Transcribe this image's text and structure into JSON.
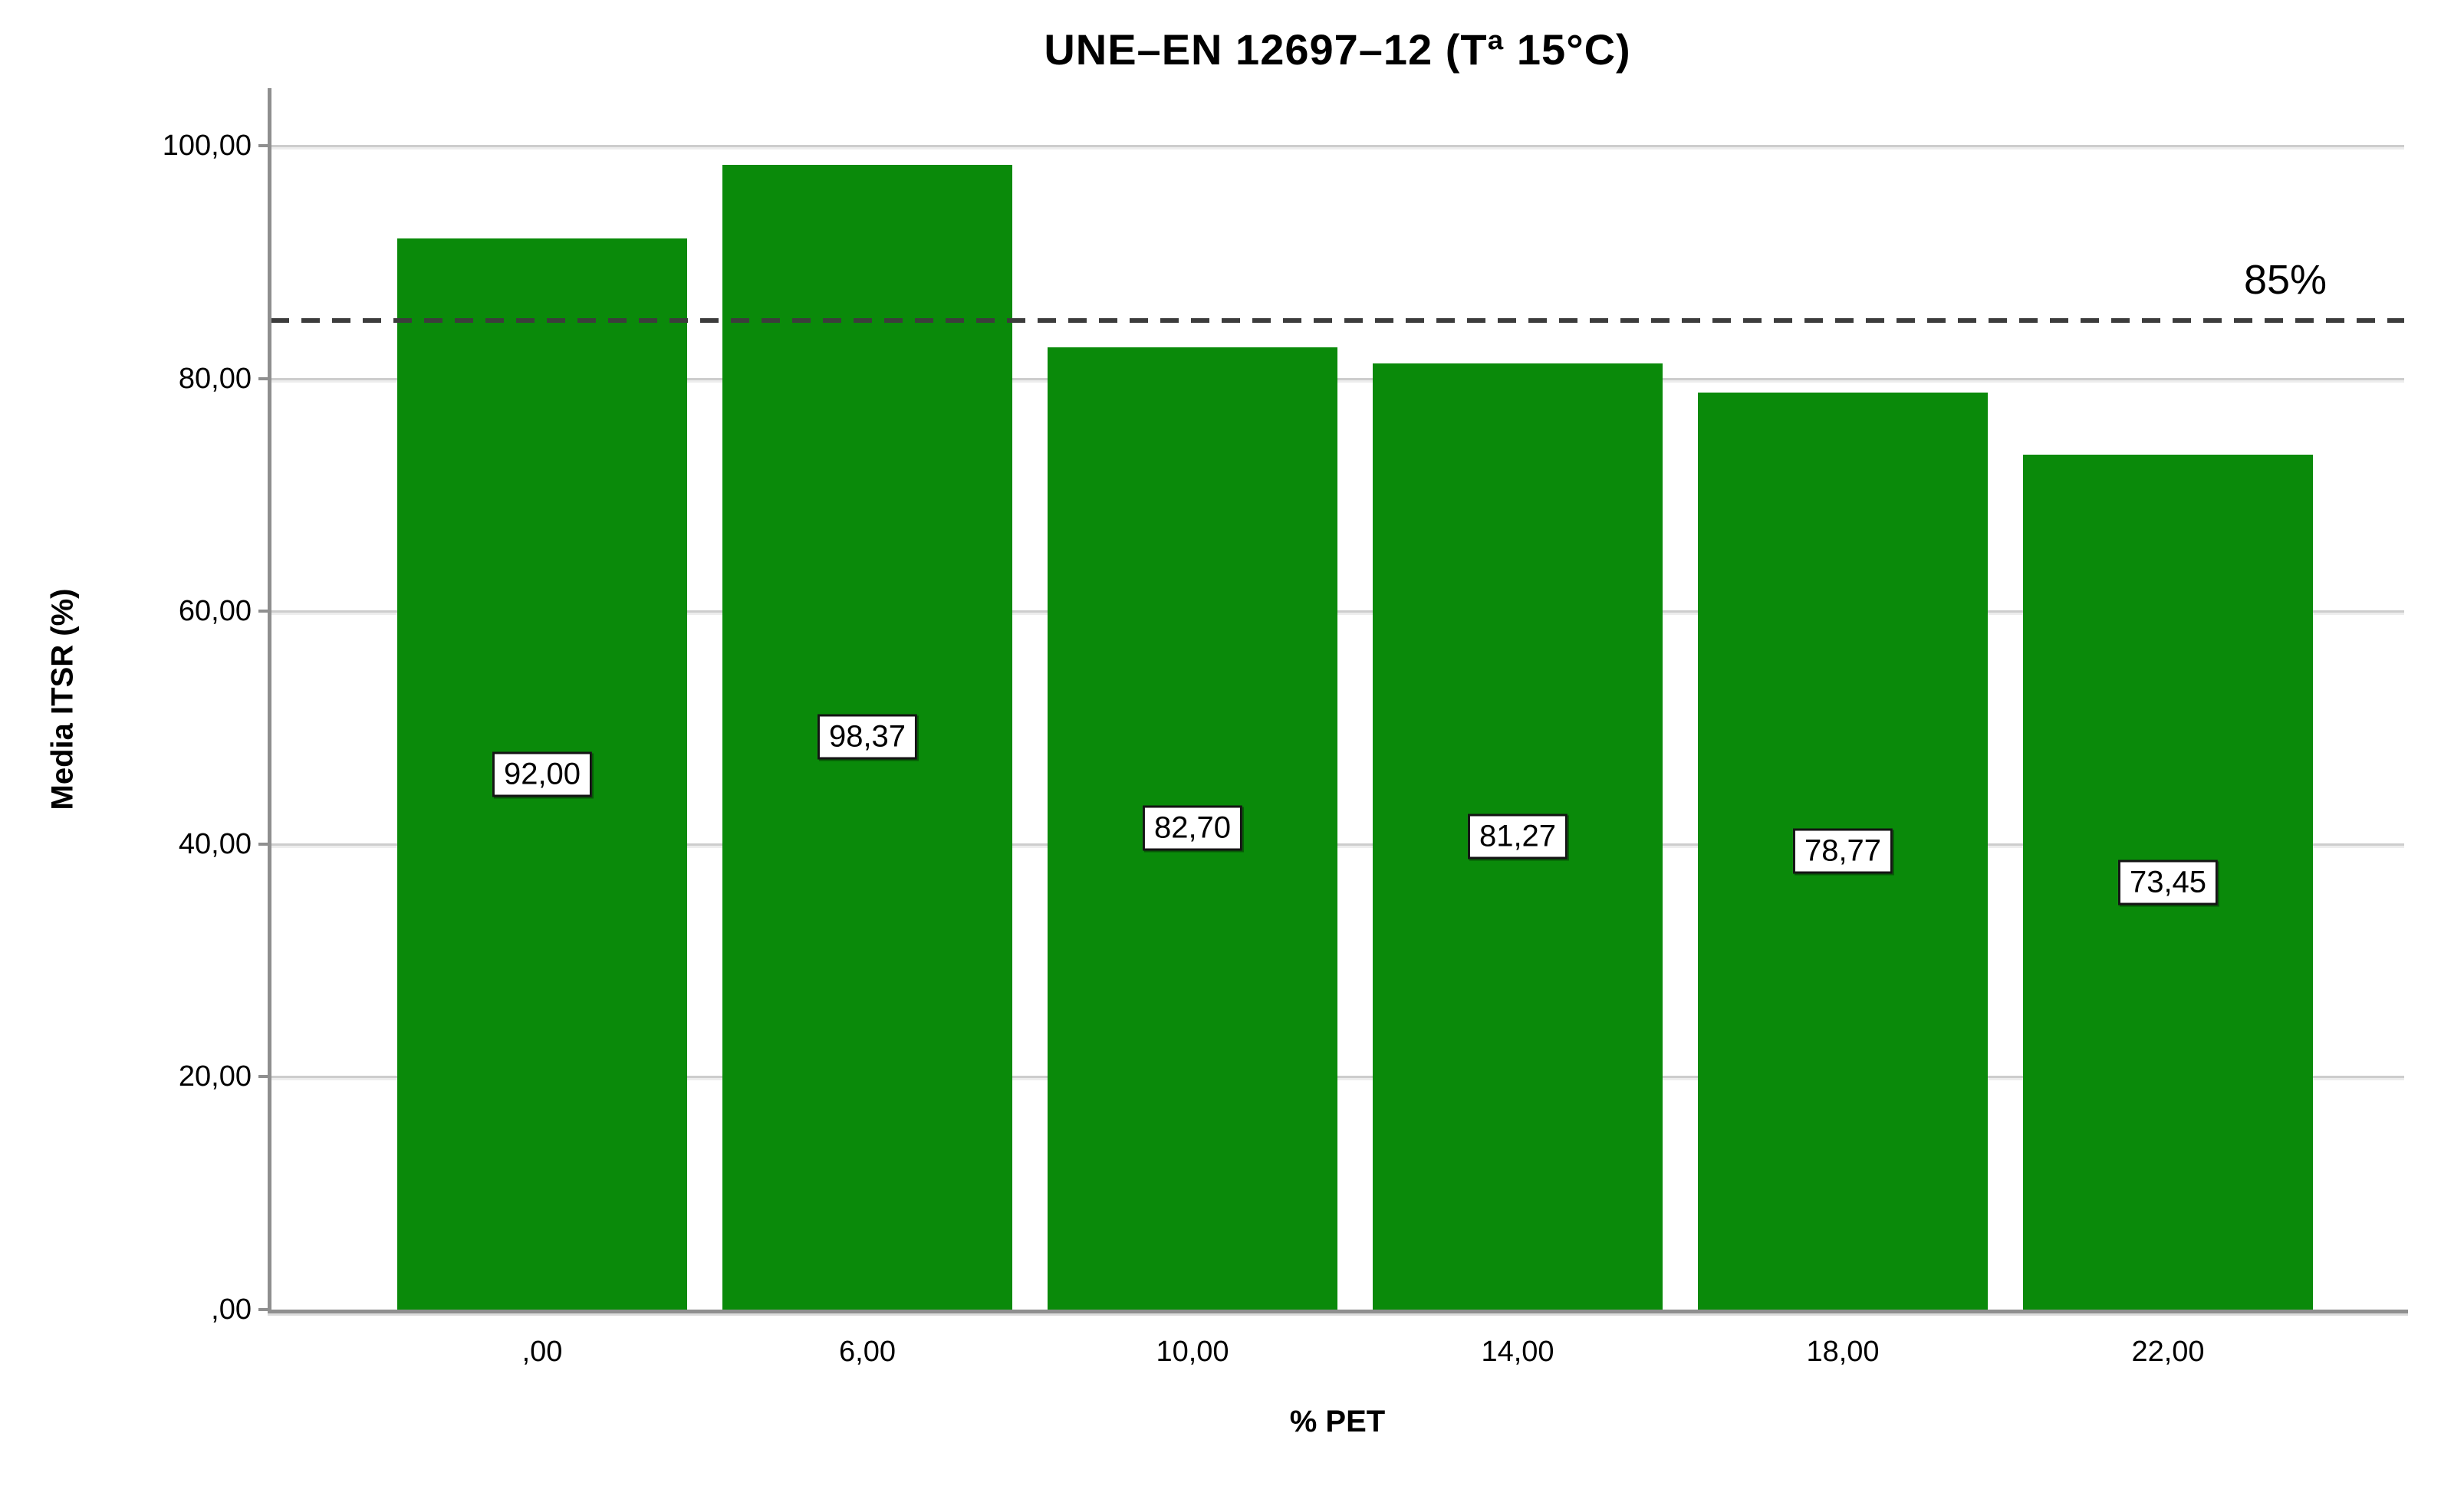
{
  "chart_data": {
    "type": "bar",
    "title": "UNE–EN 12697–12 (Tª 15°C)",
    "xlabel": "% PET",
    "ylabel": "Media ITSR (%)",
    "categories": [
      ",00",
      "6,00",
      "10,00",
      "14,00",
      "18,00",
      "22,00"
    ],
    "values": [
      92.0,
      98.37,
      82.7,
      81.27,
      78.77,
      73.45
    ],
    "value_labels": [
      "92,00",
      "98,37",
      "82,70",
      "81,27",
      "78,77",
      "73,45"
    ],
    "ylim": [
      0,
      100
    ],
    "yticks": [
      0,
      20,
      40,
      60,
      80,
      100
    ],
    "ytick_labels": [
      ",00",
      "20,00",
      "40,00",
      "60,00",
      "80,00",
      "100,00"
    ],
    "reference_line": {
      "value": 85,
      "label": "85%"
    },
    "grid": true,
    "legend_position": "none",
    "colors": {
      "bar": "#0a8a0a",
      "reference_line": "#3c3c3c",
      "grid": "#cdcdcd",
      "axis": "#8f8f8f",
      "label_box_border": "#141414",
      "label_box_background": "#ffffff"
    }
  }
}
